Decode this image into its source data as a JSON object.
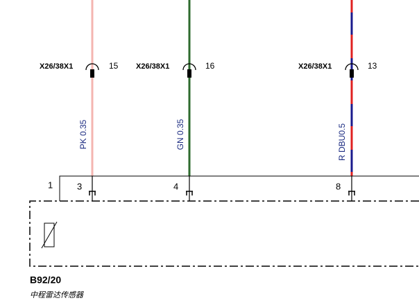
{
  "connectors": [
    {
      "id": "X26/38X1",
      "pin": "15"
    },
    {
      "id": "X26/38X1",
      "pin": "16"
    },
    {
      "id": "X26/38X1",
      "pin": "13"
    }
  ],
  "wires": [
    {
      "label": "PK 0.35"
    },
    {
      "label": "GN 0.35"
    },
    {
      "label": "R DBU0.5"
    }
  ],
  "component": {
    "id": "B92/20",
    "name": "中程雷达传感器",
    "pin_label": "1",
    "pins": [
      "3",
      "4",
      "8"
    ]
  }
}
